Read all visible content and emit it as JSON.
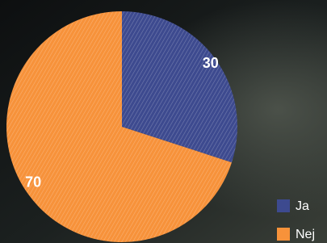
{
  "chart_data": {
    "type": "pie",
    "categories": [
      "Ja",
      "Nej"
    ],
    "values": [
      30,
      70
    ],
    "colors": [
      "#3d4a8f",
      "#f7923a"
    ],
    "hatch": true,
    "legend": "bottom-right",
    "start_angle": -90,
    "direction": "clockwise"
  }
}
